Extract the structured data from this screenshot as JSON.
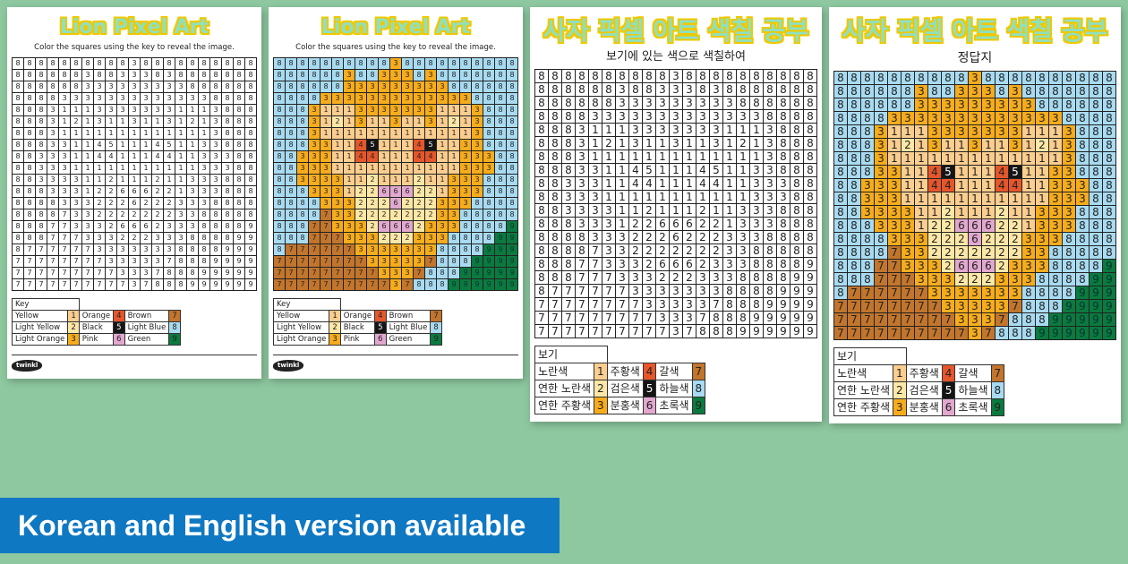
{
  "colors": {
    "1": "#fbcd8e",
    "2": "#fde7a6",
    "3": "#f7ac1c",
    "4": "#e6562b",
    "5": "#151515",
    "6": "#e2a8cf",
    "7": "#c2752c",
    "8": "#a8dbf1",
    "9": "#0b7a3f",
    "background": "#8dc8a0",
    "banner": "#0f78c3"
  },
  "grid": [
    "888888888838888888888",
    "888888388333838888888",
    "888888333333333888888",
    "888833333333333338888",
    "888311133333331113888",
    "888312131131131213888",
    "888311111111111113888",
    "888331145111451133888",
    "883331144111441133388",
    "883331111111111133388",
    "883333112111211333888",
    "888333122666221333888",
    "888833322262223338888",
    "888873322222223388888",
    "888773332666233388889",
    "888777333222333888899",
    "877777733333338888999",
    "777777773333378889999",
    "777777777333788899999",
    "777777777737888999999"
  ],
  "english_worksheet": {
    "title": "Lion Pixel Art",
    "instruction": "Color the squares using the key to reveal the image.",
    "key_header": "Key",
    "logo": "twinkl"
  },
  "english_answer": {
    "title": "Lion Pixel Art",
    "instruction": "Color the squares using the key to reveal the image.",
    "key_header": "Key",
    "logo": "twinkl"
  },
  "english_key": [
    {
      "label": "Yellow",
      "num": "1"
    },
    {
      "label": "Light Yellow",
      "num": "2"
    },
    {
      "label": "Light Orange",
      "num": "3"
    },
    {
      "label": "Orange",
      "num": "4"
    },
    {
      "label": "Black",
      "num": "5"
    },
    {
      "label": "Pink",
      "num": "6"
    },
    {
      "label": "Brown",
      "num": "7"
    },
    {
      "label": "Light Blue",
      "num": "8"
    },
    {
      "label": "Green",
      "num": "9"
    }
  ],
  "korean_worksheet": {
    "title": "사자 픽셀 아트 색칠 공부",
    "instruction": "보기에 있는 색으로 색칠하여",
    "key_header": "보기"
  },
  "korean_answer": {
    "title": "사자 픽셀 아트 색칠 공부",
    "subtitle": "정답지",
    "key_header": "보기"
  },
  "korean_key": [
    {
      "label": "노란색",
      "num": "1"
    },
    {
      "label": "연한 노란색",
      "num": "2"
    },
    {
      "label": "연한 주황색",
      "num": "3"
    },
    {
      "label": "주황색",
      "num": "4"
    },
    {
      "label": "검은색",
      "num": "5"
    },
    {
      "label": "분홍색",
      "num": "6"
    },
    {
      "label": "갈색",
      "num": "7"
    },
    {
      "label": "하늘색",
      "num": "8"
    },
    {
      "label": "초록색",
      "num": "9"
    }
  ],
  "banner": {
    "text": "Korean and English version available"
  }
}
